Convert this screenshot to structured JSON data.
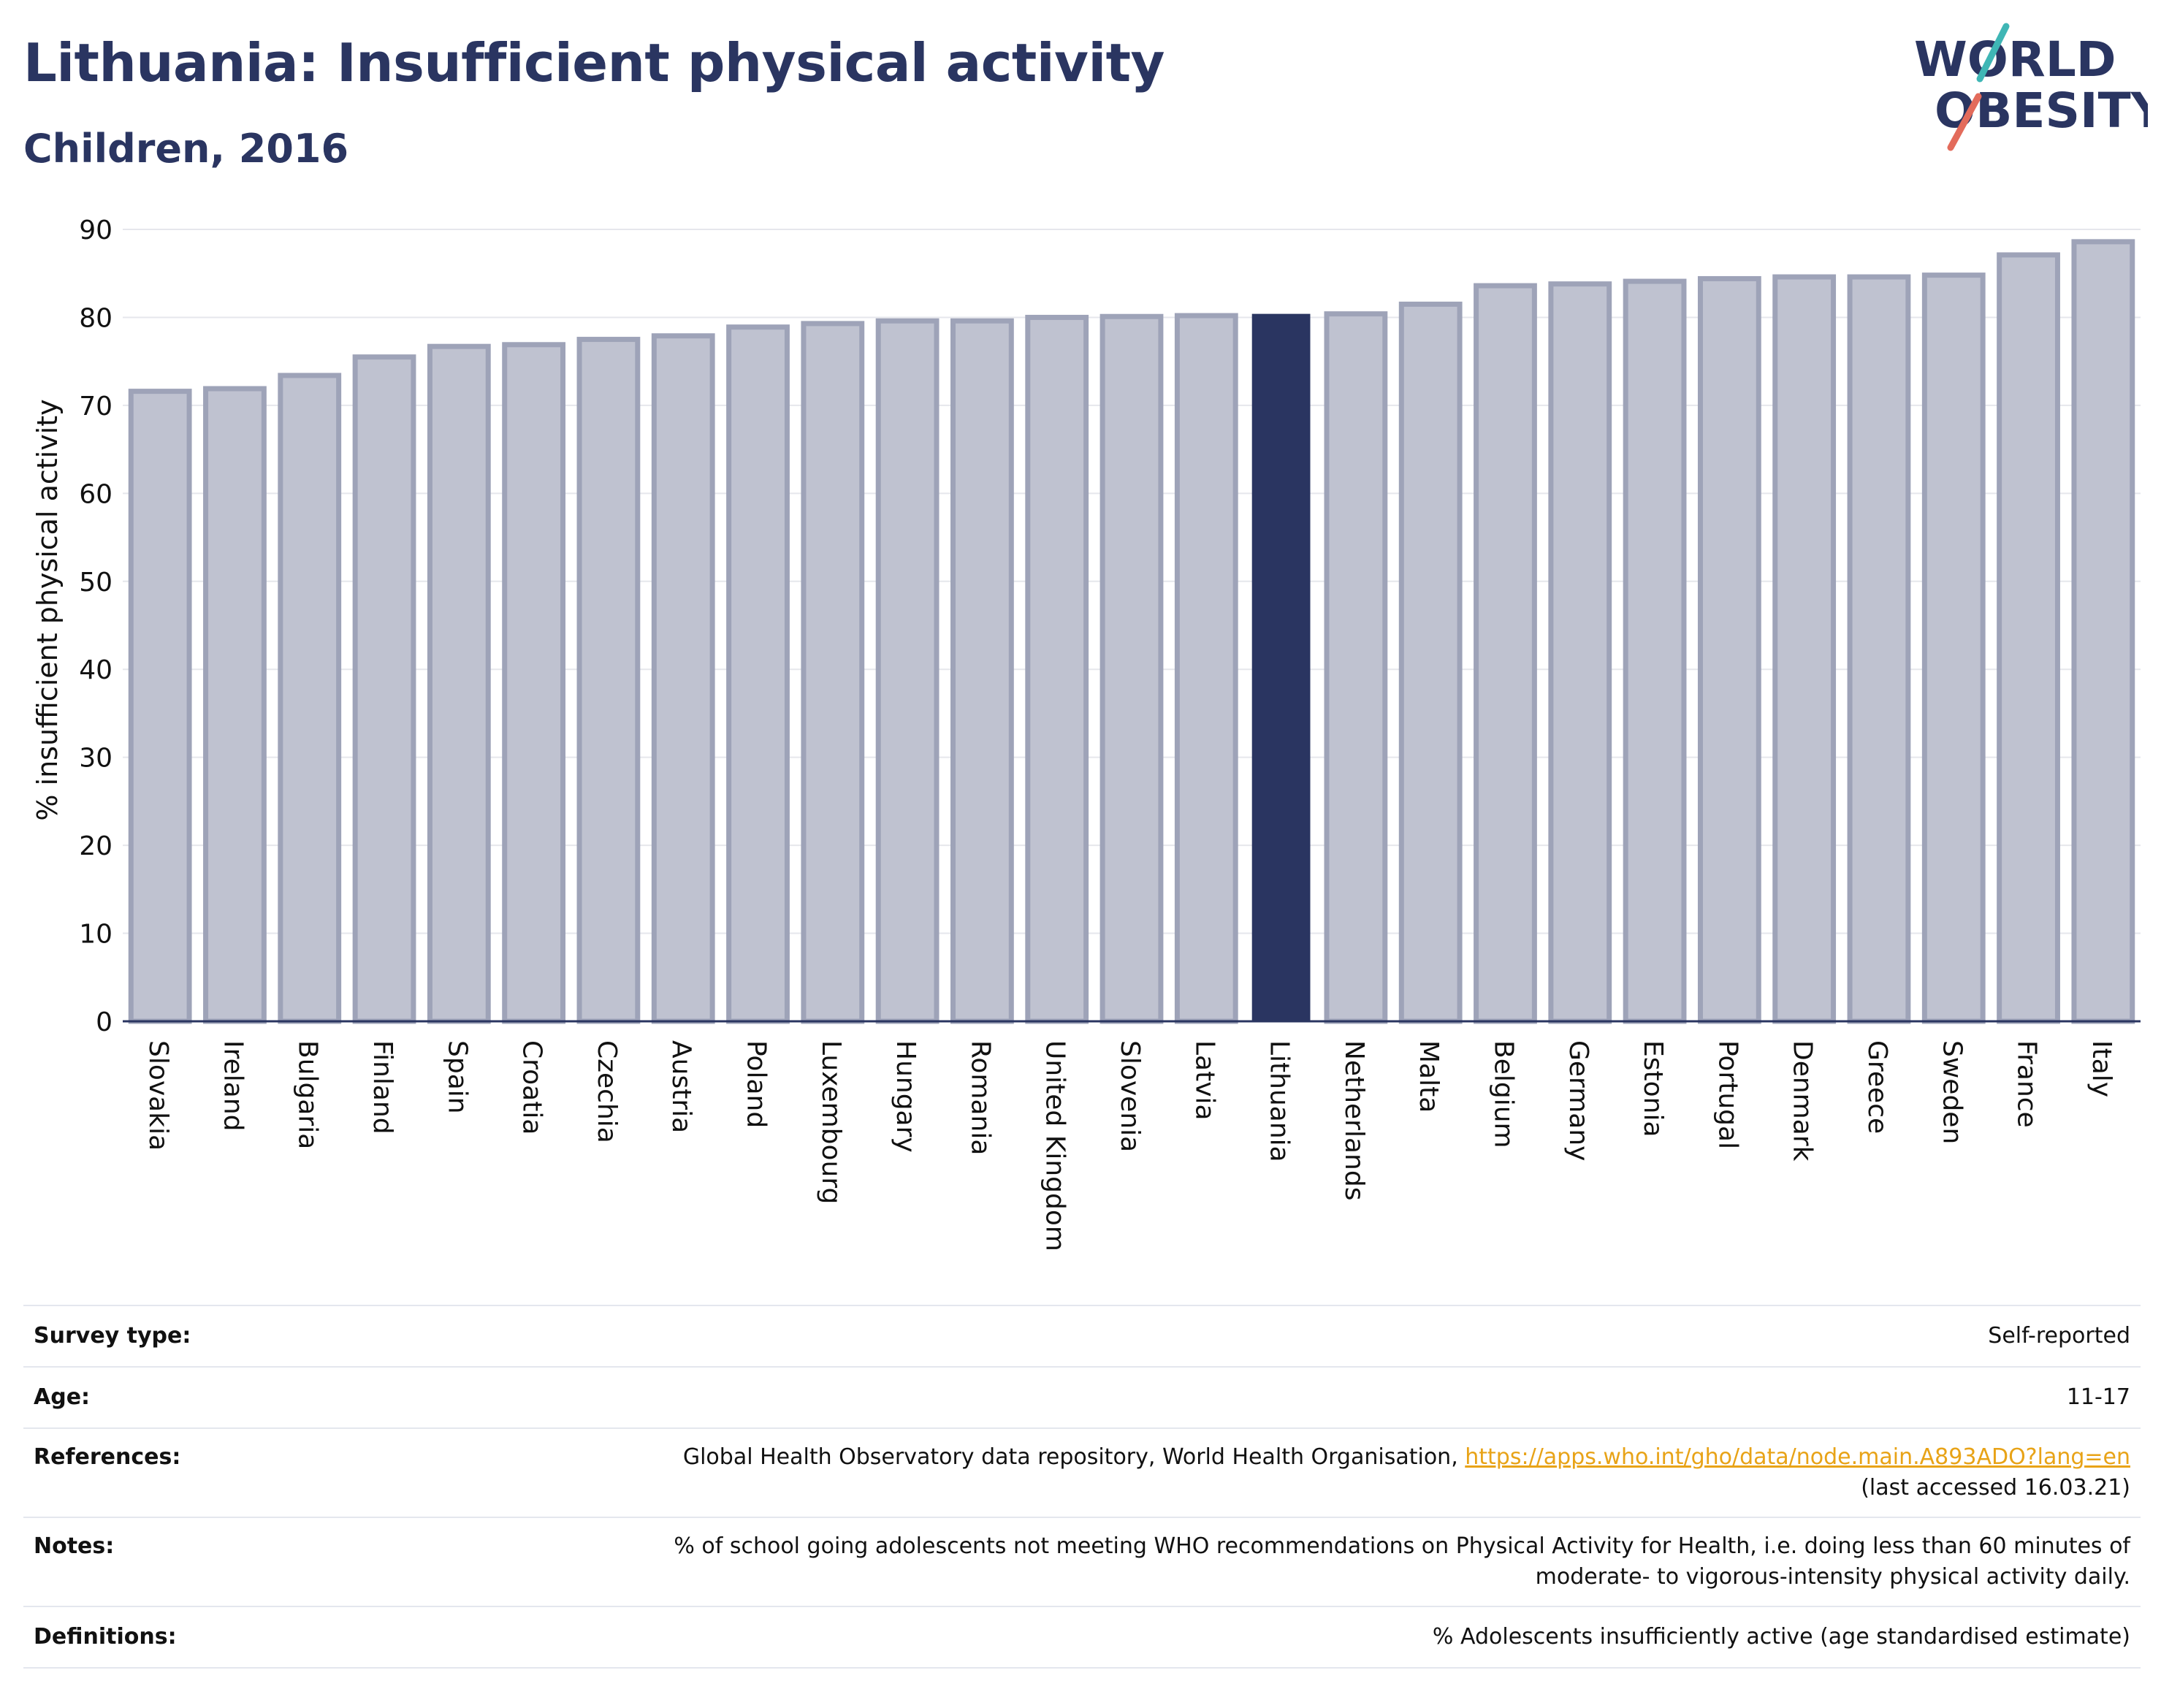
{
  "header": {
    "title": "Lithuania: Insufficient physical activity",
    "subtitle": "Children, 2016"
  },
  "logo": {
    "line1": "WORLD",
    "line2": "OBESITY"
  },
  "colors": {
    "bar": "#bfc2d0",
    "bar_border": "#9ea3b8",
    "highlight": "#2a3561",
    "grid": "#e6e7ec",
    "text": "#111111"
  },
  "chart_data": {
    "type": "bar",
    "ylabel": "% insufficient physical activity",
    "xlabel": "",
    "ylim": [
      0,
      90
    ],
    "yticks": [
      0,
      10,
      20,
      30,
      40,
      50,
      60,
      70,
      80,
      90
    ],
    "grid": true,
    "highlight": "Lithuania",
    "categories": [
      "Slovakia",
      "Ireland",
      "Bulgaria",
      "Finland",
      "Spain",
      "Croatia",
      "Czechia",
      "Austria",
      "Poland",
      "Luxembourg",
      "Hungary",
      "Romania",
      "United Kingdom",
      "Slovenia",
      "Latvia",
      "Lithuania",
      "Netherlands",
      "Malta",
      "Belgium",
      "Germany",
      "Estonia",
      "Portugal",
      "Denmark",
      "Greece",
      "Sweden",
      "France",
      "Italy"
    ],
    "values": [
      71.6,
      71.9,
      73.4,
      75.5,
      76.7,
      76.9,
      77.5,
      77.9,
      78.9,
      79.3,
      79.6,
      79.6,
      80.0,
      80.1,
      80.2,
      80.4,
      80.4,
      81.5,
      83.6,
      83.8,
      84.1,
      84.4,
      84.6,
      84.6,
      84.8,
      87.1,
      88.6
    ]
  },
  "info": [
    {
      "label": "Survey type:",
      "value": "Self-reported"
    },
    {
      "label": "Age:",
      "value": "11-17"
    },
    {
      "label": "References:",
      "value": "Global Health Observatory data repository, World Health Organisation, ",
      "link": "https://apps.who.int/gho/data/node.main.A893ADO?lang=en",
      "value2": "(last accessed 16.03.21)"
    },
    {
      "label": "Notes:",
      "value": "% of school going adolescents not meeting WHO recommendations on Physical Activity for Health, i.e. doing less than 60 minutes of",
      "value2": "moderate- to vigorous-intensity physical activity daily."
    },
    {
      "label": "Definitions:",
      "value": "% Adolescents insufficiently active (age standardised estimate)"
    }
  ]
}
